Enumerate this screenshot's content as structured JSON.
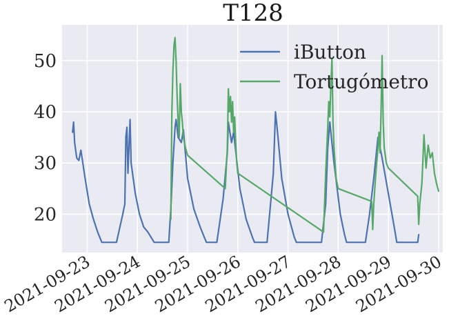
{
  "chart_data": {
    "type": "line",
    "title": "T128",
    "xlabel": "",
    "ylabel": "",
    "xlim": [
      "2021-09-22T12:00",
      "2021-09-30T02:00"
    ],
    "ylim": [
      12.5,
      57
    ],
    "yticks": [
      20,
      30,
      40,
      50
    ],
    "xticks": [
      "2021-09-23",
      "2021-09-24",
      "2021-09-25",
      "2021-09-26",
      "2021-09-27",
      "2021-09-28",
      "2021-09-29",
      "2021-09-30"
    ],
    "grid": true,
    "legend": "top-right",
    "series": [
      {
        "name": "iButton",
        "color": "#4c72b0",
        "points": [
          [
            "2021-09-22T17:00",
            36
          ],
          [
            "2021-09-22T17:30",
            38
          ],
          [
            "2021-09-22T18:00",
            34
          ],
          [
            "2021-09-22T19:00",
            31
          ],
          [
            "2021-09-22T20:00",
            30.5
          ],
          [
            "2021-09-22T21:00",
            32.5
          ],
          [
            "2021-09-22T23:00",
            27
          ],
          [
            "2021-09-23T01:00",
            22
          ],
          [
            "2021-09-23T03:00",
            19
          ],
          [
            "2021-09-23T05:00",
            16.5
          ],
          [
            "2021-09-23T07:00",
            14.5
          ],
          [
            "2021-09-23T14:00",
            14.5
          ],
          [
            "2021-09-23T17:00",
            20
          ],
          [
            "2021-09-23T18:00",
            22
          ],
          [
            "2021-09-23T18:30",
            35
          ],
          [
            "2021-09-23T19:00",
            37
          ],
          [
            "2021-09-23T19:30",
            28
          ],
          [
            "2021-09-23T20:30",
            38.5
          ],
          [
            "2021-09-23T21:00",
            30
          ],
          [
            "2021-09-23T23:00",
            24
          ],
          [
            "2021-09-24T01:00",
            20
          ],
          [
            "2021-09-24T03:00",
            17.5
          ],
          [
            "2021-09-24T05:00",
            16.5
          ],
          [
            "2021-09-24T08:00",
            14.5
          ],
          [
            "2021-09-24T15:00",
            14.5
          ],
          [
            "2021-09-24T16:00",
            21
          ],
          [
            "2021-09-24T17:00",
            30
          ],
          [
            "2021-09-24T18:00",
            37
          ],
          [
            "2021-09-24T18:30",
            38.5
          ],
          [
            "2021-09-24T19:30",
            35
          ],
          [
            "2021-09-24T21:00",
            34
          ],
          [
            "2021-09-24T22:00",
            36.5
          ],
          [
            "2021-09-25T00:00",
            27
          ],
          [
            "2021-09-25T03:00",
            21
          ],
          [
            "2021-09-25T06:00",
            17.5
          ],
          [
            "2021-09-25T08:00",
            15.5
          ],
          [
            "2021-09-25T09:00",
            14.5
          ],
          [
            "2021-09-25T14:00",
            14.5
          ],
          [
            "2021-09-25T17:00",
            23
          ],
          [
            "2021-09-25T19:00",
            32
          ],
          [
            "2021-09-25T19:30",
            38
          ],
          [
            "2021-09-25T21:00",
            34
          ],
          [
            "2021-09-25T22:00",
            36
          ],
          [
            "2021-09-26T01:00",
            25
          ],
          [
            "2021-09-26T04:00",
            19
          ],
          [
            "2021-09-26T07:00",
            15.5
          ],
          [
            "2021-09-26T08:00",
            14.5
          ],
          [
            "2021-09-26T14:00",
            14.5
          ],
          [
            "2021-09-26T17:00",
            28
          ],
          [
            "2021-09-26T18:00",
            40
          ],
          [
            "2021-09-26T19:00",
            36
          ],
          [
            "2021-09-26T21:00",
            27
          ],
          [
            "2021-09-27T00:00",
            20
          ],
          [
            "2021-09-27T03:00",
            15.5
          ],
          [
            "2021-09-27T04:00",
            14.5
          ],
          [
            "2021-09-27T16:00",
            14.5
          ],
          [
            "2021-09-27T18:00",
            22
          ],
          [
            "2021-09-27T19:00",
            33
          ],
          [
            "2021-09-27T20:00",
            38
          ],
          [
            "2021-09-27T22:00",
            30
          ],
          [
            "2021-09-28T01:00",
            20
          ],
          [
            "2021-09-28T03:00",
            16
          ],
          [
            "2021-09-28T04:00",
            14.5
          ],
          [
            "2021-09-28T13:00",
            14.5
          ],
          [
            "2021-09-28T15:00",
            20
          ],
          [
            "2021-09-28T17:00",
            27
          ],
          [
            "2021-09-28T19:00",
            35
          ],
          [
            "2021-09-28T21:00",
            31
          ],
          [
            "2021-09-29T00:00",
            24
          ],
          [
            "2021-09-29T03:00",
            17
          ],
          [
            "2021-09-29T04:00",
            14.5
          ],
          [
            "2021-09-29T14:00",
            14.5
          ],
          [
            "2021-09-29T14:30",
            16
          ]
        ]
      },
      {
        "name": "Tortugómetro",
        "color": "#55a868",
        "points": [
          [
            "2021-09-24T16:00",
            19
          ],
          [
            "2021-09-24T16:30",
            40
          ],
          [
            "2021-09-24T17:00",
            48
          ],
          [
            "2021-09-24T17:30",
            53
          ],
          [
            "2021-09-24T18:00",
            54.5
          ],
          [
            "2021-09-24T18:30",
            50
          ],
          [
            "2021-09-24T19:00",
            43
          ],
          [
            "2021-09-24T19:30",
            38
          ],
          [
            "2021-09-24T20:00",
            35
          ],
          [
            "2021-09-24T20:30",
            45.5
          ],
          [
            "2021-09-24T21:00",
            40
          ],
          [
            "2021-09-24T21:30",
            38
          ],
          [
            "2021-09-24T22:00",
            35
          ],
          [
            "2021-09-24T23:00",
            33
          ],
          [
            "2021-09-25T00:00",
            31.5
          ],
          [
            "2021-09-25T18:00",
            25
          ],
          [
            "2021-09-25T19:00",
            33
          ],
          [
            "2021-09-25T19:30",
            44.5
          ],
          [
            "2021-09-25T20:00",
            40
          ],
          [
            "2021-09-25T20:30",
            43
          ],
          [
            "2021-09-25T21:00",
            38
          ],
          [
            "2021-09-25T21:30",
            42
          ],
          [
            "2021-09-25T22:00",
            36
          ],
          [
            "2021-09-25T22:30",
            39
          ],
          [
            "2021-09-25T23:00",
            34
          ],
          [
            "2021-09-25T23:30",
            30
          ],
          [
            "2021-09-26T00:00",
            28
          ],
          [
            "2021-09-27T17:00",
            16.5
          ],
          [
            "2021-09-27T18:00",
            28
          ],
          [
            "2021-09-27T19:00",
            37
          ],
          [
            "2021-09-27T19:30",
            42
          ],
          [
            "2021-09-27T20:00",
            39
          ],
          [
            "2021-09-27T20:30",
            45
          ],
          [
            "2021-09-27T21:00",
            50.5
          ],
          [
            "2021-09-27T21:30",
            38
          ],
          [
            "2021-09-27T22:00",
            33
          ],
          [
            "2021-09-27T23:00",
            27
          ],
          [
            "2021-09-28T00:00",
            25
          ],
          [
            "2021-09-28T16:00",
            22.5
          ],
          [
            "2021-09-28T16:30",
            17
          ],
          [
            "2021-09-28T17:00",
            22
          ],
          [
            "2021-09-28T18:00",
            28
          ],
          [
            "2021-09-28T19:00",
            33
          ],
          [
            "2021-09-28T19:30",
            36
          ],
          [
            "2021-09-28T20:00",
            32
          ],
          [
            "2021-09-28T20:30",
            40
          ],
          [
            "2021-09-28T21:00",
            51
          ],
          [
            "2021-09-28T21:30",
            38
          ],
          [
            "2021-09-28T22:00",
            33
          ],
          [
            "2021-09-28T23:00",
            30
          ],
          [
            "2021-09-29T00:00",
            29
          ],
          [
            "2021-09-29T14:00",
            23.5
          ],
          [
            "2021-09-29T14:30",
            18
          ],
          [
            "2021-09-29T15:00",
            22
          ],
          [
            "2021-09-29T16:00",
            26
          ],
          [
            "2021-09-29T17:00",
            35.5
          ],
          [
            "2021-09-29T18:00",
            29
          ],
          [
            "2021-09-29T19:00",
            33.5
          ],
          [
            "2021-09-29T20:00",
            31
          ],
          [
            "2021-09-29T21:00",
            32
          ],
          [
            "2021-09-29T22:00",
            28
          ],
          [
            "2021-09-29T23:00",
            26
          ],
          [
            "2021-09-30T00:00",
            24.5
          ]
        ]
      }
    ]
  }
}
